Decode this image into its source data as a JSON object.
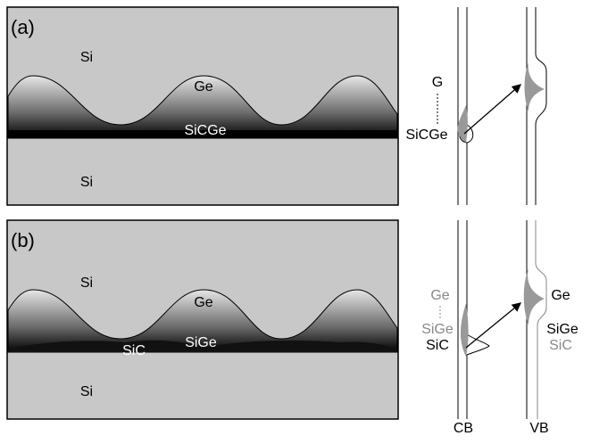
{
  "panels": [
    {
      "label": "(a)",
      "regions": {
        "top": "Si",
        "dot": "Ge",
        "layer": "SiCGe",
        "bottom": "Si"
      },
      "band_labels": {
        "upper": "G",
        "lower": "SiCGe"
      }
    },
    {
      "label": "(b)",
      "regions": {
        "top": "Si",
        "dot": "Ge",
        "layer_c": "SiC",
        "layer_ge": "SiGe",
        "bottom": "Si"
      },
      "band_labels": {
        "cb_ge": "Ge",
        "cb_sige": "SiGe",
        "cb_sic": "SiC",
        "vb_ge": "Ge",
        "vb_sige": "SiGe",
        "vb_sic": "SiC"
      }
    }
  ],
  "axis_labels": {
    "cb": "CB",
    "vb": "VB"
  }
}
